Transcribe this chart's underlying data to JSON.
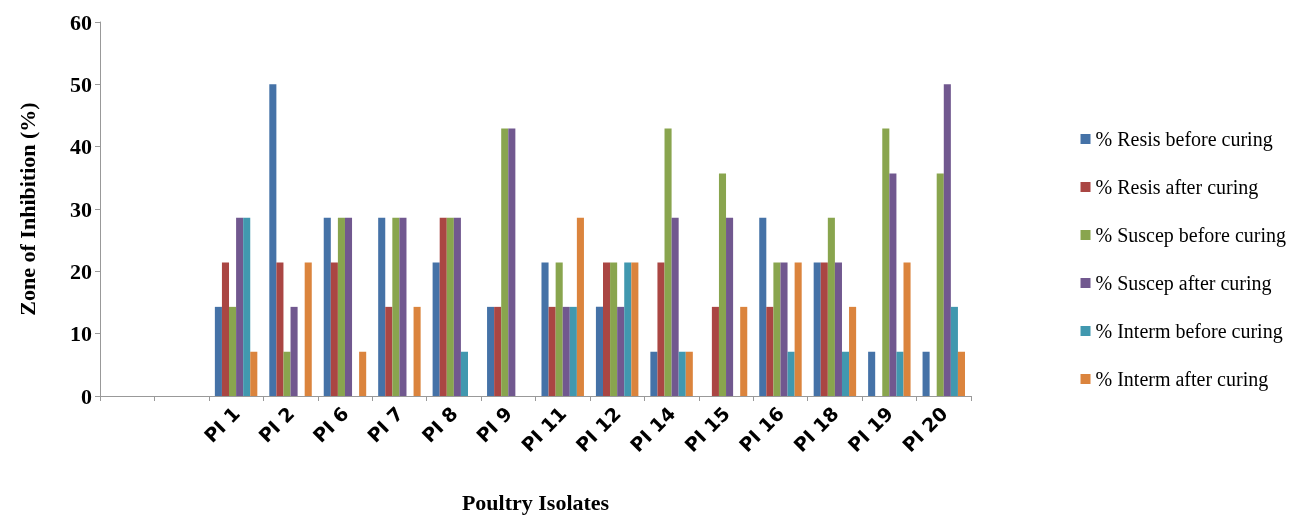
{
  "chart_data": {
    "type": "bar",
    "xlabel": "Poultry Isolates",
    "ylabel": "Zone of Inhibition (%)",
    "categories": [
      null,
      null,
      "PI 1",
      "PI 2",
      "PI 6",
      "PI 7",
      "PI 8",
      "PI 9",
      "PI 11",
      "PI 12",
      "PI 14",
      "PI 15",
      "PI 16",
      "PI 18",
      "PI 19",
      "PI 20"
    ],
    "series": [
      {
        "name": "% Resis before curing",
        "color": "#4572a7",
        "values": [
          null,
          null,
          14.3,
          50,
          28.6,
          28.6,
          21.4,
          14.3,
          21.4,
          14.3,
          7.1,
          0,
          28.6,
          21.4,
          7.1,
          7.1
        ]
      },
      {
        "name": "% Resis after curing",
        "color": "#aa4643",
        "values": [
          null,
          null,
          21.4,
          21.4,
          21.4,
          14.3,
          28.6,
          14.3,
          14.3,
          21.4,
          21.4,
          14.3,
          14.3,
          21.4,
          0,
          0
        ]
      },
      {
        "name": "% Suscep before curing",
        "color": "#89a54e",
        "values": [
          null,
          null,
          14.3,
          7.1,
          28.6,
          28.6,
          28.6,
          42.9,
          21.4,
          21.4,
          42.9,
          35.7,
          21.4,
          28.6,
          42.9,
          35.7
        ]
      },
      {
        "name": "% Suscep after curing",
        "color": "#71588f",
        "values": [
          null,
          null,
          28.6,
          14.3,
          28.6,
          28.6,
          28.6,
          42.9,
          14.3,
          14.3,
          28.6,
          28.6,
          21.4,
          21.4,
          35.7,
          50
        ]
      },
      {
        "name": "% Interm before curing",
        "color": "#4198af",
        "values": [
          null,
          null,
          28.6,
          0,
          0,
          0,
          7.1,
          0,
          14.3,
          21.4,
          7.1,
          0,
          7.1,
          7.1,
          7.1,
          14.3
        ]
      },
      {
        "name": "% Interm after curing",
        "color": "#db843d",
        "values": [
          null,
          null,
          7.1,
          21.4,
          7.1,
          14.3,
          0,
          0,
          28.6,
          21.4,
          7.1,
          14.3,
          21.4,
          14.3,
          21.4,
          7.1
        ]
      }
    ],
    "ylim": [
      0,
      60
    ],
    "yticks": [
      0,
      10,
      20,
      30,
      40,
      50,
      60
    ],
    "grid": false,
    "legend": "right"
  }
}
